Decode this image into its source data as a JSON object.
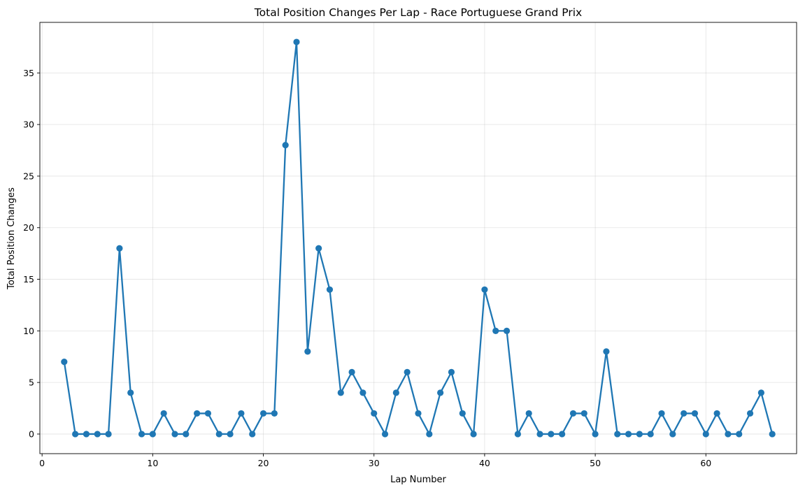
{
  "chart_data": {
    "type": "line",
    "title": "Total Position Changes Per Lap - Race Portuguese Grand Prix",
    "xlabel": "Lap Number",
    "ylabel": "Total Position Changes",
    "xlim": [
      -0.2,
      68.2
    ],
    "ylim": [
      -1.9,
      39.9
    ],
    "xticks": [
      0,
      10,
      20,
      30,
      40,
      50,
      60
    ],
    "yticks": [
      0,
      5,
      10,
      15,
      20,
      25,
      30,
      35
    ],
    "grid": true,
    "color": "#1f77b4",
    "marker": "circle",
    "x": [
      2,
      3,
      4,
      5,
      6,
      7,
      8,
      9,
      10,
      11,
      12,
      13,
      14,
      15,
      16,
      17,
      18,
      19,
      20,
      21,
      22,
      23,
      24,
      25,
      26,
      27,
      28,
      29,
      30,
      31,
      32,
      33,
      34,
      35,
      36,
      37,
      38,
      39,
      40,
      41,
      42,
      43,
      44,
      45,
      46,
      47,
      48,
      49,
      50,
      51,
      52,
      53,
      54,
      55,
      56,
      57,
      58,
      59,
      60,
      61,
      62,
      63,
      64,
      65,
      66
    ],
    "y": [
      7,
      0,
      0,
      0,
      0,
      18,
      4,
      0,
      0,
      2,
      0,
      0,
      2,
      2,
      0,
      0,
      2,
      0,
      2,
      2,
      28,
      38,
      8,
      18,
      14,
      4,
      6,
      4,
      2,
      0,
      4,
      6,
      2,
      0,
      4,
      6,
      2,
      0,
      14,
      10,
      10,
      0,
      2,
      0,
      0,
      0,
      2,
      2,
      0,
      8,
      0,
      0,
      0,
      0,
      2,
      0,
      2,
      2,
      0,
      2,
      0,
      0,
      2,
      4,
      0
    ]
  }
}
